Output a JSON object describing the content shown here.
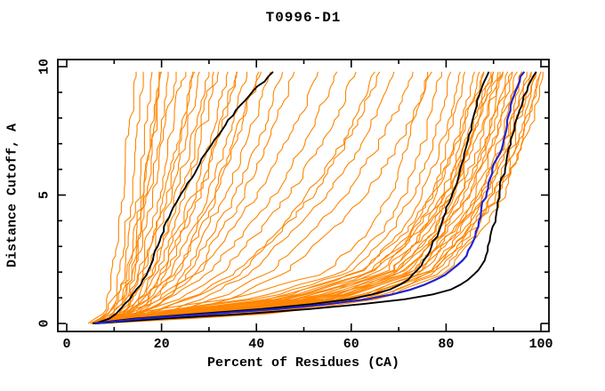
{
  "title": "T0996-D1",
  "chart_data": {
    "type": "line",
    "title": "T0996-D1",
    "xlabel": "Percent of Residues (CA)",
    "ylabel": "Distance Cutoff, A",
    "xlim": [
      0,
      100
    ],
    "ylim": [
      0,
      10
    ],
    "x_major_ticks": [
      0,
      20,
      40,
      60,
      80,
      100
    ],
    "x_minor_ticks": [
      10,
      30,
      50,
      70,
      90
    ],
    "y_major_ticks": [
      0,
      5,
      10
    ],
    "y_minor_ticks": [
      1,
      2,
      3,
      4,
      6,
      7,
      8,
      9
    ],
    "grid": false,
    "legend": "none",
    "curve_max_cutoff": 9.8,
    "colors": {
      "ensemble": "#ff8500",
      "highlight1": "#000000",
      "highlight2": "#2222cc"
    },
    "cutoff_levels": [
      0,
      0.4,
      1,
      2,
      3.5,
      5,
      7,
      8.5,
      9.8
    ],
    "series": [
      {
        "name": "server-models",
        "color": "#ff8500",
        "width": 1.1,
        "style": "percent-at-cutoff-levels",
        "curves": [
          [
            4.5,
            8,
            8.5,
            9.5,
            10.5,
            11.5,
            12.5,
            13.5,
            14.5
          ],
          [
            5,
            8.5,
            10,
            11,
            12,
            13.5,
            14.5,
            15,
            16
          ],
          [
            5,
            9,
            11,
            12,
            13,
            15,
            16,
            17,
            18
          ],
          [
            5.5,
            9,
            11,
            13,
            14.5,
            16,
            17.5,
            18.5,
            19.5
          ],
          [
            5,
            10,
            12,
            14,
            15.5,
            17,
            19,
            20,
            21
          ],
          [
            6,
            10,
            12.5,
            14.5,
            16,
            18,
            20,
            21.5,
            23
          ],
          [
            5.5,
            11,
            13,
            15,
            17,
            19.5,
            21.5,
            23,
            24.5
          ],
          [
            6,
            11,
            13.5,
            16,
            18,
            20.5,
            23,
            25,
            26.5
          ],
          [
            6.5,
            12,
            14,
            17,
            19,
            22,
            24.5,
            26.5,
            28
          ],
          [
            5,
            12,
            15,
            18,
            20.5,
            23,
            26,
            28,
            30
          ],
          [
            6,
            13,
            16,
            19,
            22,
            25,
            28,
            30,
            32
          ],
          [
            6.5,
            13,
            16.5,
            20,
            23,
            26.5,
            30,
            32,
            34
          ],
          [
            7,
            14,
            17,
            21,
            24.5,
            28,
            31.5,
            34,
            36
          ],
          [
            6,
            14,
            18,
            22,
            26,
            30,
            33.5,
            36,
            38
          ],
          [
            6.5,
            15,
            19,
            23.5,
            27.5,
            31.5,
            35.5,
            38,
            40.5
          ],
          [
            7,
            15,
            20,
            25,
            29,
            33.5,
            37.5,
            40.5,
            43
          ],
          [
            6,
            16,
            21,
            26,
            30.5,
            35.5,
            40,
            43,
            45.5
          ],
          [
            7.5,
            16,
            21.5,
            27.5,
            32,
            37.5,
            42,
            45.5,
            48
          ],
          [
            5.5,
            10.5,
            12.5,
            14,
            15,
            16.5,
            18,
            19,
            20
          ],
          [
            6,
            11.5,
            14,
            16.5,
            18.5,
            21,
            23.5,
            25.5,
            27
          ],
          [
            5,
            13,
            17,
            20.5,
            24,
            27.5,
            31,
            33.5,
            35.5
          ],
          [
            7,
            14.5,
            18.5,
            23,
            27,
            31,
            35,
            38,
            41
          ],
          [
            6.5,
            12.5,
            15.5,
            18.5,
            21,
            24,
            27,
            29,
            31
          ],
          [
            5.5,
            9.5,
            11.5,
            13,
            14.5,
            16,
            17.5,
            18.5,
            19.5
          ],
          [
            6,
            13,
            20,
            28,
            34,
            40,
            46,
            50,
            53
          ],
          [
            7,
            15,
            22,
            30,
            37,
            44,
            50,
            54,
            57
          ],
          [
            6.5,
            16,
            24,
            33,
            40,
            47,
            54,
            58,
            61
          ],
          [
            7.5,
            18,
            26,
            36,
            44,
            51,
            58,
            62,
            65
          ],
          [
            6,
            20,
            29,
            39,
            47,
            55,
            62,
            66,
            69
          ],
          [
            8,
            22,
            32,
            43,
            51,
            59,
            66,
            70,
            73
          ],
          [
            7,
            24,
            35,
            46,
            55,
            63,
            70,
            74,
            77
          ],
          [
            6.5,
            17,
            27,
            37,
            45,
            52,
            59,
            63,
            66
          ],
          [
            5,
            14,
            36,
            55,
            63,
            68,
            72,
            74,
            76
          ],
          [
            5.5,
            16,
            40,
            58,
            66,
            71,
            75,
            77,
            79
          ],
          [
            6,
            18,
            42,
            60,
            68,
            73,
            77,
            79,
            81
          ],
          [
            5,
            20,
            45,
            62,
            70,
            75,
            79,
            81,
            83
          ],
          [
            6.5,
            22,
            47,
            64,
            72,
            77,
            80,
            82,
            84
          ],
          [
            5.5,
            24,
            50,
            66,
            73,
            78,
            82,
            84,
            86
          ],
          [
            6,
            26,
            52,
            68,
            75,
            80,
            83,
            85,
            87
          ],
          [
            7,
            28,
            54,
            70,
            77,
            81,
            84,
            86,
            88
          ],
          [
            5,
            30,
            56,
            71,
            78,
            82,
            85,
            87,
            89
          ],
          [
            6,
            25,
            50,
            68,
            76,
            81,
            85,
            88,
            90
          ],
          [
            6.5,
            27,
            53,
            70,
            78,
            83,
            87,
            89,
            91
          ],
          [
            5.5,
            29,
            55,
            72,
            79,
            84,
            88,
            90,
            92
          ],
          [
            6,
            31,
            57,
            73,
            80,
            85,
            89,
            91,
            93
          ],
          [
            7,
            33,
            59,
            74,
            81,
            86,
            90,
            92,
            94
          ],
          [
            5,
            35,
            61,
            75,
            82,
            87,
            91,
            93,
            95
          ],
          [
            6,
            37,
            63,
            76,
            83,
            88,
            92,
            94,
            96
          ],
          [
            6.5,
            39,
            64,
            77,
            84,
            89,
            93,
            95,
            97
          ],
          [
            5.5,
            41,
            65,
            78,
            85,
            90,
            94,
            96,
            98
          ],
          [
            6,
            43,
            66,
            79,
            86,
            91,
            95,
            97,
            99
          ],
          [
            7,
            45,
            67,
            80,
            87,
            92,
            96,
            98,
            100
          ],
          [
            5,
            22,
            48,
            65,
            74,
            80,
            85,
            88,
            91
          ],
          [
            6,
            24,
            51,
            69,
            77,
            83,
            88,
            91,
            94
          ],
          [
            6.5,
            26,
            54,
            71,
            79,
            85,
            90,
            93,
            96
          ],
          [
            5.5,
            28,
            56,
            73,
            81,
            87,
            92,
            95,
            98
          ],
          [
            6,
            30,
            58,
            74,
            82,
            88,
            93,
            96,
            99
          ],
          [
            7,
            32,
            60,
            76,
            84,
            90,
            95,
            98,
            100
          ],
          [
            5,
            34,
            62,
            77,
            85,
            91,
            96,
            99,
            100
          ],
          [
            6,
            19,
            44,
            62,
            71,
            77,
            82,
            85,
            88
          ],
          [
            6.5,
            21,
            46,
            64,
            73,
            79,
            84,
            87,
            90
          ],
          [
            5.5,
            23,
            49,
            67,
            75,
            81,
            86,
            89,
            92
          ]
        ]
      },
      {
        "name": "model-black-left",
        "color": "#000000",
        "width": 1.9,
        "style": "point-list",
        "points": [
          [
            6,
            0
          ],
          [
            9,
            0.2
          ],
          [
            11,
            0.5
          ],
          [
            13,
            0.9
          ],
          [
            15,
            1.4
          ],
          [
            17,
            2.0
          ],
          [
            18.5,
            2.6
          ],
          [
            19.5,
            3.2
          ],
          [
            21,
            4.0
          ],
          [
            23,
            4.7
          ],
          [
            25,
            5.3
          ],
          [
            27,
            5.9
          ],
          [
            29,
            6.5
          ],
          [
            31,
            7.1
          ],
          [
            33,
            7.6
          ],
          [
            35,
            8.1
          ],
          [
            37,
            8.6
          ],
          [
            39.5,
            9.1
          ],
          [
            42,
            9.5
          ],
          [
            43.5,
            9.8
          ]
        ]
      },
      {
        "name": "model-black-mid",
        "color": "#000000",
        "width": 1.9,
        "style": "point-list",
        "points": [
          [
            5.5,
            0
          ],
          [
            12,
            0.15
          ],
          [
            22,
            0.3
          ],
          [
            33,
            0.45
          ],
          [
            44,
            0.6
          ],
          [
            54,
            0.8
          ],
          [
            62,
            1.0
          ],
          [
            68,
            1.3
          ],
          [
            72,
            1.7
          ],
          [
            74.5,
            2.2
          ],
          [
            76.5,
            2.8
          ],
          [
            78,
            3.4
          ],
          [
            79.5,
            4.1
          ],
          [
            81,
            4.9
          ],
          [
            82.5,
            5.7
          ],
          [
            84,
            6.6
          ],
          [
            85,
            7.4
          ],
          [
            86,
            8.2
          ],
          [
            87,
            8.9
          ],
          [
            88,
            9.4
          ],
          [
            89,
            9.8
          ]
        ]
      },
      {
        "name": "model-black-right",
        "color": "#000000",
        "width": 1.9,
        "style": "point-list",
        "points": [
          [
            6,
            0
          ],
          [
            14,
            0.12
          ],
          [
            26,
            0.25
          ],
          [
            40,
            0.4
          ],
          [
            54,
            0.6
          ],
          [
            65,
            0.8
          ],
          [
            74,
            1.0
          ],
          [
            80,
            1.25
          ],
          [
            84,
            1.6
          ],
          [
            86.5,
            2.0
          ],
          [
            88,
            2.5
          ],
          [
            89,
            3.1
          ],
          [
            90,
            3.8
          ],
          [
            90.8,
            4.6
          ],
          [
            91.5,
            5.4
          ],
          [
            92.5,
            6.2
          ],
          [
            93.5,
            7.0
          ],
          [
            94.5,
            7.8
          ],
          [
            96,
            8.6
          ],
          [
            97.5,
            9.3
          ],
          [
            99,
            9.8
          ]
        ]
      },
      {
        "name": "model-blue",
        "color": "#2222cc",
        "width": 2.2,
        "style": "point-list",
        "points": [
          [
            6,
            0
          ],
          [
            13,
            0.15
          ],
          [
            24,
            0.3
          ],
          [
            37,
            0.45
          ],
          [
            50,
            0.65
          ],
          [
            60,
            0.85
          ],
          [
            68,
            1.1
          ],
          [
            74,
            1.4
          ],
          [
            79,
            1.8
          ],
          [
            82,
            2.2
          ],
          [
            84.5,
            2.7
          ],
          [
            86,
            3.3
          ],
          [
            87,
            4.0
          ],
          [
            88,
            4.8
          ],
          [
            89,
            5.5
          ],
          [
            90,
            6.1
          ],
          [
            91.5,
            6.7
          ],
          [
            92.5,
            7.3
          ],
          [
            93,
            8.0
          ],
          [
            94,
            8.7
          ],
          [
            95,
            9.3
          ],
          [
            96.5,
            9.8
          ]
        ]
      }
    ]
  }
}
